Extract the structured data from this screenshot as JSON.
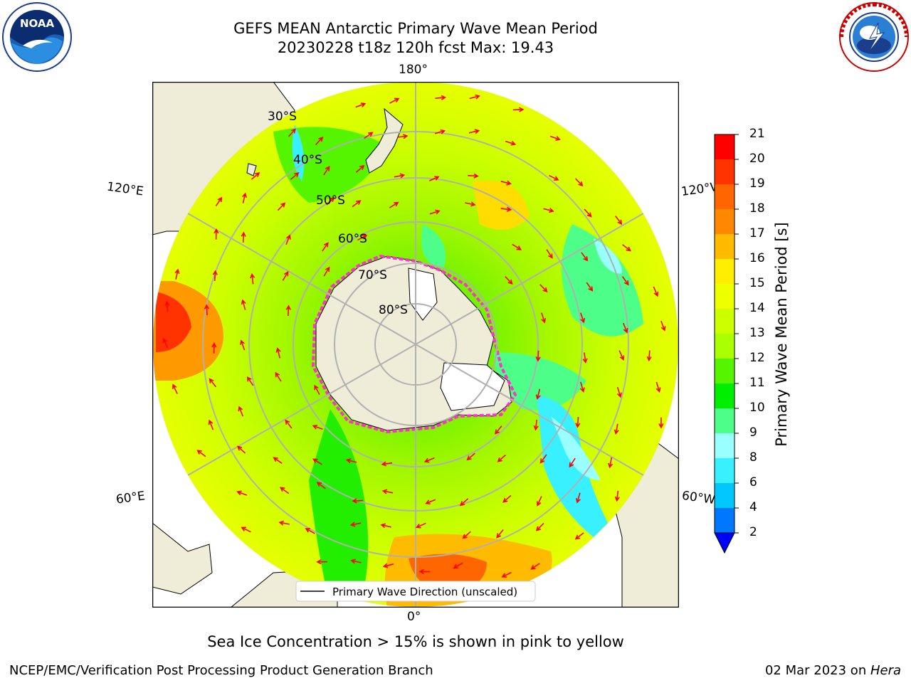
{
  "title": {
    "line1": "GEFS MEAN Antarctic Primary Wave Mean Period",
    "line2": "20230228 t18z 120h fcst   Max: 19.43"
  },
  "logos": {
    "left": {
      "name": "NOAA",
      "text": "NOAA"
    },
    "right": {
      "name": "National Weather Service"
    }
  },
  "map": {
    "projection": "south-polar-stereographic",
    "lon_labels": {
      "top": "180°",
      "bottom": "0°",
      "left_upper": "120°E",
      "left_lower": "60°E",
      "right_upper": "120°W",
      "right_lower": "60°W"
    },
    "lat_labels": [
      "30°S",
      "40°S",
      "50°S",
      "60°S",
      "70°S",
      "80°S"
    ],
    "legend": "Primary Wave Direction (unscaled)",
    "colors": {
      "land": "#efedd8",
      "ice_edge": "#ff33cc",
      "arrow": "#ff0000",
      "grid": "#b0b0b0"
    }
  },
  "colorbar": {
    "label": "Primary Wave Mean Period [s]",
    "ticks": [
      "2",
      "4",
      "6",
      "8",
      "9",
      "10",
      "11",
      "12",
      "13",
      "14",
      "15",
      "16",
      "17",
      "18",
      "19",
      "20",
      "21"
    ],
    "colors": [
      "#0077ff",
      "#00c8ff",
      "#38f0ff",
      "#99ffff",
      "#4dff88",
      "#00ee00",
      "#55f500",
      "#aaff00",
      "#ccff00",
      "#eeff00",
      "#ffee00",
      "#ffbb00",
      "#ff8800",
      "#ff6600",
      "#ff3300",
      "#ff0000"
    ],
    "extend_color": "#0000ff"
  },
  "note": "Sea Ice Concentration > 15% is shown in pink to yellow",
  "footer": {
    "left": "NCEP/EMC/Verification Post Processing Product Generation Branch",
    "right_date": "02 Mar 2023 on ",
    "right_host": "Hera"
  }
}
